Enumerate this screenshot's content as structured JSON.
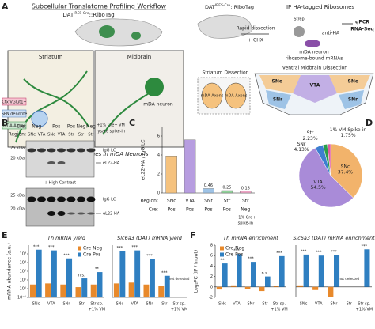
{
  "panel_letters": [
    "A",
    "B",
    "C",
    "D",
    "E",
    "F"
  ],
  "workflow": {
    "title": "Subcellular Translatome Profiling Workflow",
    "mouse_label": [
      "DAT",
      "IRES-Cre",
      "::RiboTag"
    ],
    "striatum": "Striatum",
    "midbrain": "Midbrain",
    "legend_items": [
      "Ctx VGlut1+",
      "SPN dendrite",
      "mDA Axons"
    ],
    "inset_neuron": "mDA neuron",
    "caption": "HA-tagged ribosomes in mDA Neurons",
    "rapid": "Rapid dissection",
    "chx": "+ CHX",
    "ip_title": "IP HA-tagged Ribosomes",
    "strep": "Strep",
    "anti_ha": "anti-HA",
    "ip_neuron": "mDA neuron",
    "ribosome_mrna": "ribosome-bound mRNAs",
    "qpcr": "qPCR",
    "rnaseq": "RNA-Seq",
    "striatum_dissection": "Striatum Dissection",
    "axons": [
      "mDA Axons",
      "mDA Axons"
    ],
    "vm_dissection": "Ventral Midbrain Dissection",
    "vm_regions": [
      "SNc",
      "VTA",
      "SNc",
      "SNr",
      "SNr"
    ]
  },
  "blot": {
    "cre_label": "Cre:",
    "region_label": "Region:",
    "cre": [
      "Neg",
      "Pos",
      "Pos",
      "Neg",
      "Neg"
    ],
    "regions": [
      "SNc",
      "VTA",
      "SNc",
      "VTA",
      "Str",
      "Str",
      "Str"
    ],
    "spike_in": [
      "+1% Cre+ VM",
      "lysate spike-in"
    ],
    "kda": [
      "25 kDa",
      "20 kDa",
      "25 kDa",
      "20 kDa"
    ],
    "bands": [
      "IgG LC",
      "eL22-HA",
      "IgG LC",
      "eL22-HA"
    ],
    "high_contrast": "↓ High Contrast"
  },
  "chart_data": [
    {
      "type": "bar",
      "ylabel": "eL22-HA / IgG LC",
      "categories": [
        "SNc",
        "VTA",
        "SNr",
        "Str",
        "Str"
      ],
      "cre_label": "Cre:",
      "region_label": "Region:",
      "cre": [
        "Pos",
        "Pos",
        "Pos",
        "Pos",
        "Neg"
      ],
      "spike_in": [
        "+1% Cre+",
        "spike-in"
      ],
      "values": [
        3.9,
        5.6,
        0.46,
        0.25,
        0.18
      ],
      "value_labels": [
        null,
        null,
        "0.46",
        "0.25",
        "0.18"
      ],
      "colors": [
        "#f5c27e",
        "#b79de0",
        "#9ec3e6",
        "#90d39a",
        "#f2a6c8"
      ],
      "ylim": [
        0,
        7
      ],
      "yticks": [
        0,
        2,
        4,
        6
      ]
    },
    {
      "type": "pie",
      "categories": [
        "SNc",
        "VTA",
        "SNr",
        "Str",
        "1% VM Spike-in"
      ],
      "values": [
        37.4,
        54.5,
        4.13,
        2.23,
        1.75
      ],
      "value_labels": [
        "37.4%",
        "54.5%",
        "4.13%",
        "2.23%",
        "1.75%"
      ],
      "colors": [
        "#f2b36b",
        "#a98bd8",
        "#3d7fd0",
        "#2a9e4a",
        "#e05ca0"
      ]
    },
    {
      "type": "grouped-bar",
      "title": "Th mRNA yield",
      "ylabel": "mRNA abundance (a.u.)",
      "log": true,
      "legend": "upper right",
      "categories": [
        "SNc",
        "VTA",
        "SNr",
        "Str",
        "Str sp."
      ],
      "sublabels": [
        null,
        null,
        null,
        null,
        "+1% VM"
      ],
      "series": [
        {
          "name": "Cre Neg",
          "color": "#e8892b",
          "values": [
            3,
            4,
            3,
            1.5,
            3
          ]
        },
        {
          "name": "Cre Pos",
          "color": "#2f7fc1",
          "values": [
            30000,
            25000,
            3000,
            15,
            80
          ]
        }
      ],
      "annotations": [
        "***",
        "***",
        "***",
        "n.s.",
        "**"
      ],
      "ylim": [
        0.1,
        100000
      ],
      "yticks": [
        {
          "value": 0.1,
          "label": "10⁻¹"
        },
        {
          "value": 1,
          "label": "10⁰"
        },
        {
          "value": 10,
          "label": "10¹"
        },
        {
          "value": 100,
          "label": "10²"
        },
        {
          "value": 1000,
          "label": "10³"
        },
        {
          "value": 10000,
          "label": "10⁴"
        }
      ]
    },
    {
      "type": "grouped-bar",
      "title": "Slc6a3 (DAT) mRNA yield",
      "log": true,
      "categories": [
        "SNc",
        "VTA",
        "SNr",
        "Str",
        "Str sp."
      ],
      "sublabels": [
        null,
        null,
        null,
        null,
        "+1% VM"
      ],
      "series": [
        {
          "color": "#e8892b",
          "values": [
            4,
            5,
            3,
            2,
            null
          ]
        },
        {
          "color": "#2f7fc1",
          "values": [
            20000,
            25000,
            2500,
            30,
            null
          ]
        }
      ],
      "annotations": [
        "***",
        "***",
        "***",
        "***",
        "not detected"
      ],
      "ylim": [
        0.1,
        100000
      ]
    },
    {
      "type": "grouped-bar",
      "title": "Th mRNA enrichment",
      "ylabel": "Log₂FC (IP / Input)",
      "legend": "upper left",
      "categories": [
        "SNc",
        "VTA",
        "SNr",
        "Str",
        "Str sp."
      ],
      "sublabels": [
        null,
        null,
        null,
        null,
        "+1% VM"
      ],
      "series": [
        {
          "name": "Cre Neg",
          "color": "#e8892b",
          "values": [
            -0.5,
            0.3,
            -0.4,
            -0.8,
            0.2
          ]
        },
        {
          "name": "Cre Pos",
          "color": "#2f7fc1",
          "values": [
            4.5,
            6.3,
            4.8,
            2.0,
            5.9
          ]
        }
      ],
      "annotations": [
        "**",
        "***",
        "***",
        "n.s.",
        "***"
      ],
      "ylim": [
        -2,
        8
      ],
      "yticks": [
        -2,
        0,
        2,
        4,
        6,
        8
      ]
    },
    {
      "type": "grouped-bar",
      "title": "Slc6a3 (DAT) mRNA enrichment",
      "categories": [
        "SNc",
        "VTA",
        "SNr",
        "Str",
        "Str sp."
      ],
      "sublabels": [
        null,
        null,
        null,
        null,
        "+1% VM"
      ],
      "series": [
        {
          "color": "#e8892b",
          "values": [
            0.3,
            -0.6,
            -1.9,
            null,
            null
          ]
        },
        {
          "color": "#2f7fc1",
          "values": [
            6.2,
            6.0,
            6.1,
            null,
            7.2
          ]
        }
      ],
      "annotations": [
        "***",
        "***",
        "***",
        "not detected",
        "***"
      ],
      "ylim": [
        -2,
        8
      ]
    }
  ]
}
